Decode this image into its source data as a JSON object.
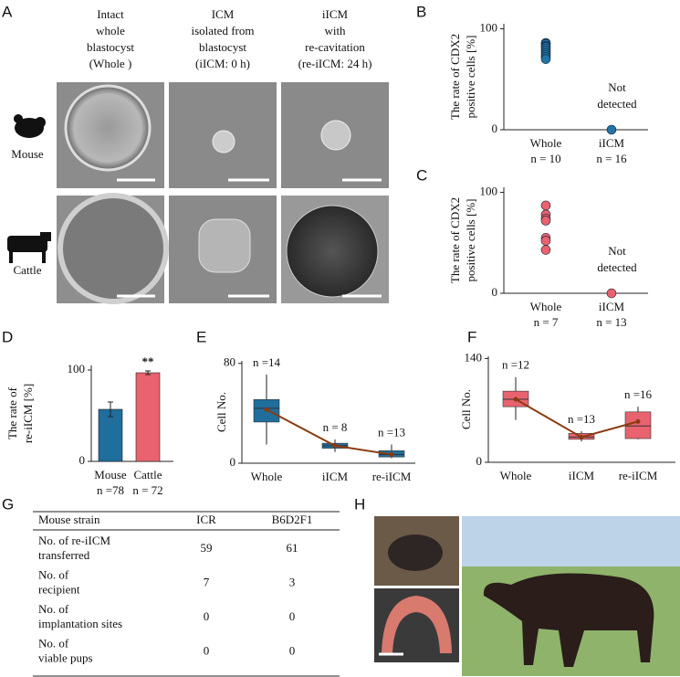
{
  "chart_data": [
    {
      "panel_label": "B",
      "type": "strip",
      "ylabel": [
        "The rate of CDX2",
        "positive cells [%]"
      ],
      "categories": [
        "Whole",
        "iICM"
      ],
      "n_labels": [
        "n = 10",
        "n = 16"
      ],
      "values": [
        [
          86,
          85,
          83,
          82,
          80,
          78,
          76,
          74,
          72,
          70
        ],
        [
          0
        ]
      ],
      "color": "#2273a8",
      "ylim": [
        0,
        105
      ],
      "yticks": [
        0,
        100
      ],
      "annotation": [
        "Not",
        "detected"
      ]
    },
    {
      "panel_label": "C",
      "type": "strip",
      "ylabel": [
        "The rate of CDX2",
        "positive cells [%]"
      ],
      "categories": [
        "Whole",
        "iICM"
      ],
      "n_labels": [
        "n = 7",
        "n = 13"
      ],
      "values": [
        [
          87,
          78,
          74,
          72,
          55,
          52,
          43
        ],
        [
          0
        ]
      ],
      "color": "#e8636f",
      "ylim": [
        0,
        105
      ],
      "yticks": [
        0,
        100
      ],
      "annotation": [
        "Not",
        "detected"
      ]
    },
    {
      "panel_label": "D",
      "type": "bar",
      "ylabel": [
        "The rate of",
        "re-iICM [%]"
      ],
      "categories": [
        "Mouse",
        "Cattle"
      ],
      "n_labels": [
        "n =78",
        "n = 72"
      ],
      "values": [
        57,
        97
      ],
      "errors": [
        8,
        2
      ],
      "colors": [
        "#1f6e9c",
        "#e8636f"
      ],
      "significance": "**",
      "ylim": [
        0,
        105
      ],
      "yticks": [
        0,
        100
      ]
    },
    {
      "panel_label": "E",
      "type": "box",
      "ylabel": "Cell No.",
      "categories": [
        "Whole",
        "iICM",
        "re-iICM"
      ],
      "n_labels": [
        "n =14",
        "n = 8",
        "n =13"
      ],
      "boxes": [
        {
          "min": 15,
          "q1": 33,
          "median": 44,
          "q3": 51,
          "max": 71,
          "mean": 43
        },
        {
          "min": 9,
          "q1": 12,
          "median": 14,
          "q3": 16,
          "max": 19,
          "mean": 14
        },
        {
          "min": 4,
          "q1": 5,
          "median": 7,
          "q3": 10,
          "max": 15,
          "mean": 7
        }
      ],
      "color": "#1f6e9c",
      "mean_line_color": "#8b3a0f",
      "ylim": [
        0,
        82
      ],
      "yticks": [
        0,
        80
      ]
    },
    {
      "panel_label": "F",
      "type": "box",
      "ylabel": "Cell No.",
      "categories": [
        "Whole",
        "iICM",
        "re-iICM"
      ],
      "n_labels": [
        "n =12",
        "n =13",
        "n =16"
      ],
      "boxes": [
        {
          "min": 57,
          "q1": 75,
          "median": 85,
          "q3": 96,
          "max": 115,
          "mean": 85
        },
        {
          "min": 28,
          "q1": 31,
          "median": 34,
          "q3": 39,
          "max": 42,
          "mean": 34
        },
        {
          "min": 31,
          "q1": 32,
          "median": 49,
          "q3": 68,
          "max": 75,
          "mean": 55
        }
      ],
      "color": "#e8636f",
      "mean_line_color": "#8b3a0f",
      "ylim": [
        0,
        143
      ],
      "yticks": [
        0,
        140
      ]
    }
  ],
  "panel_a": {
    "label": "A",
    "columns": [
      [
        "Intact",
        "whole",
        "blastocyst",
        "(Whole )"
      ],
      [
        "ICM",
        "isolated from",
        "blastocyst",
        "(iICM: 0 h)"
      ],
      [
        "iICM",
        "with",
        "re-cavitation",
        "(re-iICM: 24 h)"
      ]
    ],
    "rows": [
      "Mouse",
      "Cattle"
    ]
  },
  "table": {
    "label": "G",
    "header": [
      "Mouse strain",
      "ICR",
      "B6D2F1"
    ],
    "rows": [
      [
        [
          "No. of re-iICM",
          "transferred"
        ],
        "59",
        "61"
      ],
      [
        [
          "No. of",
          "recipient"
        ],
        "7",
        "3"
      ],
      [
        [
          "No. of",
          "implantation sites"
        ],
        "0",
        "0"
      ],
      [
        [
          "No. of",
          "viable pups"
        ],
        "0",
        "0"
      ]
    ]
  },
  "panel_h": {
    "label": "H"
  }
}
